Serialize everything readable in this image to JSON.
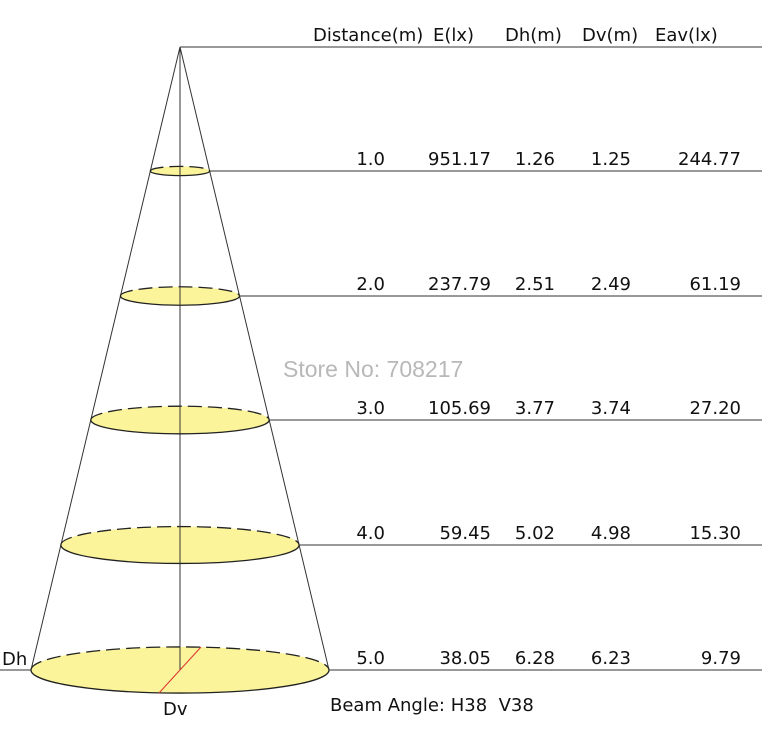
{
  "header": {
    "columns": [
      "Distance(m)",
      "E(lx)",
      "Dh(m)",
      "Dv(m)",
      "Eav(lx)"
    ]
  },
  "table": {
    "rows": [
      [
        "1.0",
        "951.17",
        "1.26",
        "1.25",
        "244.77"
      ],
      [
        "2.0",
        "237.79",
        "2.51",
        "2.49",
        "61.19"
      ],
      [
        "3.0",
        "105.69",
        "3.77",
        "3.74",
        "27.20"
      ],
      [
        "4.0",
        "59.45",
        "5.02",
        "4.98",
        "15.30"
      ],
      [
        "5.0",
        "38.05",
        "6.28",
        "6.23",
        "9.79"
      ]
    ]
  },
  "labels": {
    "dh": "Dh",
    "dv": "Dv",
    "beam_angle": "Beam Angle: H38  V38"
  },
  "watermark": "Store No: 708217"
}
